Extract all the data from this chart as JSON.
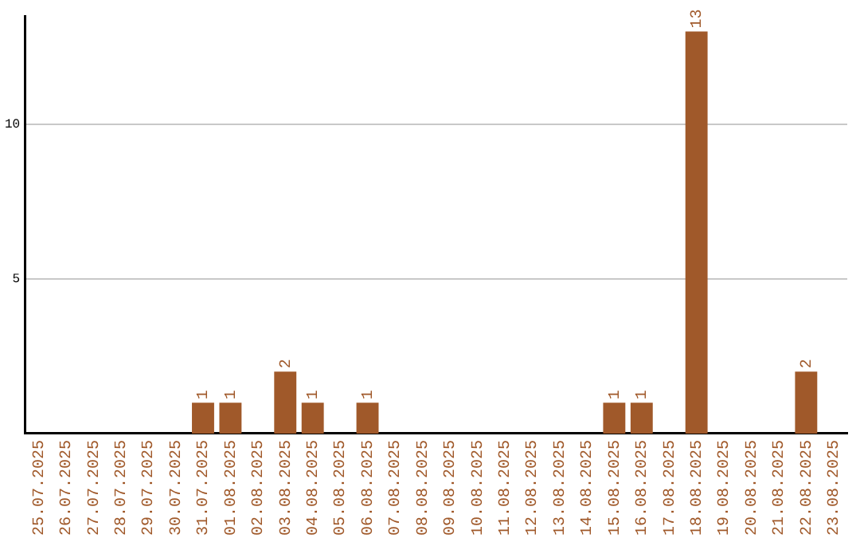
{
  "chart_data": {
    "type": "bar",
    "categories": [
      "25.07.2025",
      "26.07.2025",
      "27.07.2025",
      "28.07.2025",
      "29.07.2025",
      "30.07.2025",
      "31.07.2025",
      "01.08.2025",
      "02.08.2025",
      "03.08.2025",
      "04.08.2025",
      "05.08.2025",
      "06.08.2025",
      "07.08.2025",
      "08.08.2025",
      "09.08.2025",
      "10.08.2025",
      "11.08.2025",
      "12.08.2025",
      "13.08.2025",
      "14.08.2025",
      "15.08.2025",
      "16.08.2025",
      "17.08.2025",
      "18.08.2025",
      "19.08.2025",
      "20.08.2025",
      "21.08.2025",
      "22.08.2025",
      "23.08.2025"
    ],
    "values": [
      0,
      0,
      0,
      0,
      0,
      0,
      1,
      1,
      0,
      2,
      1,
      0,
      1,
      0,
      0,
      0,
      0,
      0,
      0,
      0,
      0,
      1,
      1,
      0,
      13,
      0,
      0,
      0,
      2,
      0
    ],
    "value_labels": [
      null,
      null,
      null,
      null,
      null,
      null,
      "1",
      "1",
      null,
      "2",
      "1",
      null,
      "1",
      null,
      null,
      null,
      null,
      null,
      null,
      null,
      null,
      "1",
      "1",
      null,
      "13",
      null,
      null,
      null,
      "2",
      null
    ],
    "color": "#a0592a",
    "ylim": [
      0,
      13.5
    ],
    "yticks": [
      5,
      10
    ],
    "grid": "y",
    "legend": false
  }
}
